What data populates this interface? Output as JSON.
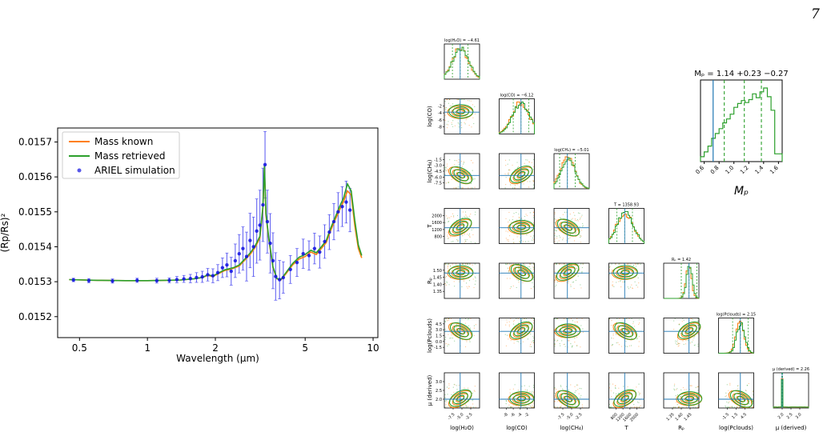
{
  "page_number": "7",
  "chart_data": [
    {
      "type": "line",
      "ylabel": "(Rp/Rs)²",
      "xlabel": "Wavelength (μm)",
      "x_scale": "log",
      "xlim": [
        0.4,
        10.5
      ],
      "ylim": [
        0.01514,
        0.01574
      ],
      "xticks": [
        {
          "value": 0.5,
          "label": "0.5"
        },
        {
          "value": 1,
          "label": "1"
        },
        {
          "value": 2,
          "label": "2"
        },
        {
          "value": 5,
          "label": "5"
        },
        {
          "value": 10,
          "label": "10"
        }
      ],
      "yticks": [
        {
          "value": 0.0152,
          "label": "0.0152"
        },
        {
          "value": 0.0153,
          "label": "0.0153"
        },
        {
          "value": 0.0154,
          "label": "0.0154"
        },
        {
          "value": 0.0155,
          "label": "0.0155"
        },
        {
          "value": 0.0156,
          "label": "0.0156"
        },
        {
          "value": 0.0157,
          "label": "0.0157"
        }
      ],
      "legend": {
        "placement": "top-left",
        "entries": [
          "Mass known",
          "Mass retrieved",
          "ARIEL simulation"
        ]
      },
      "series": [
        {
          "name": "Mass known",
          "color": "#ff7f0e",
          "x": [
            0.45,
            0.6,
            0.8,
            1.0,
            1.2,
            1.4,
            1.6,
            1.75,
            1.85,
            1.95,
            2.05,
            2.2,
            2.4,
            2.55,
            2.7,
            2.85,
            3.0,
            3.15,
            3.25,
            3.3,
            3.35,
            3.45,
            3.6,
            3.75,
            3.9,
            4.1,
            4.4,
            4.7,
            5.0,
            5.3,
            5.6,
            5.9,
            6.2,
            6.5,
            6.8,
            7.1,
            7.4,
            7.7,
            8.0,
            8.3,
            8.6,
            8.9
          ],
          "y": [
            0.015306,
            0.015304,
            0.015303,
            0.015303,
            0.015304,
            0.015305,
            0.015308,
            0.015312,
            0.015318,
            0.015315,
            0.015322,
            0.015332,
            0.015338,
            0.015345,
            0.015362,
            0.015378,
            0.015398,
            0.015425,
            0.01551,
            0.015625,
            0.01549,
            0.01542,
            0.01534,
            0.015308,
            0.015305,
            0.015322,
            0.015348,
            0.015365,
            0.015372,
            0.015385,
            0.015378,
            0.015395,
            0.015412,
            0.015448,
            0.015478,
            0.015505,
            0.01553,
            0.01556,
            0.015548,
            0.01546,
            0.015395,
            0.015368
          ]
        },
        {
          "name": "Mass retrieved",
          "color": "#2ca02c",
          "x": [
            0.45,
            0.6,
            0.8,
            1.0,
            1.2,
            1.4,
            1.6,
            1.75,
            1.85,
            1.95,
            2.05,
            2.2,
            2.4,
            2.55,
            2.7,
            2.85,
            3.0,
            3.15,
            3.25,
            3.3,
            3.35,
            3.45,
            3.6,
            3.75,
            3.9,
            4.1,
            4.4,
            4.7,
            5.0,
            5.3,
            5.6,
            5.9,
            6.2,
            6.5,
            6.8,
            7.1,
            7.4,
            7.7,
            8.0,
            8.3,
            8.6,
            8.9
          ],
          "y": [
            0.015306,
            0.015304,
            0.015303,
            0.015303,
            0.015304,
            0.015305,
            0.015308,
            0.015312,
            0.01532,
            0.015316,
            0.015324,
            0.015334,
            0.01534,
            0.015348,
            0.015365,
            0.015382,
            0.015402,
            0.01543,
            0.015515,
            0.015632,
            0.015495,
            0.015425,
            0.015342,
            0.015309,
            0.015306,
            0.015325,
            0.015352,
            0.01537,
            0.015378,
            0.01539,
            0.015383,
            0.0154,
            0.015418,
            0.015455,
            0.015485,
            0.015515,
            0.01554,
            0.01558,
            0.01556,
            0.015475,
            0.015405,
            0.015375
          ]
        },
        {
          "name": "ARIEL simulation",
          "color": "#1010e0",
          "kind": "errorbar",
          "x": [
            0.47,
            0.55,
            0.7,
            0.9,
            1.1,
            1.25,
            1.35,
            1.45,
            1.55,
            1.65,
            1.75,
            1.85,
            1.95,
            2.05,
            2.15,
            2.25,
            2.35,
            2.45,
            2.55,
            2.65,
            2.75,
            2.85,
            2.95,
            3.05,
            3.15,
            3.25,
            3.32,
            3.4,
            3.5,
            3.6,
            3.7,
            3.85,
            4.0,
            4.3,
            4.6,
            4.9,
            5.2,
            5.5,
            5.8,
            6.1,
            6.4,
            6.7,
            7.0,
            7.3,
            7.6,
            7.9
          ],
          "y": [
            0.015305,
            0.015303,
            0.015302,
            0.015304,
            0.015303,
            0.015304,
            0.015306,
            0.015308,
            0.015309,
            0.015312,
            0.015314,
            0.01532,
            0.015317,
            0.015326,
            0.01534,
            0.015348,
            0.01533,
            0.01536,
            0.01538,
            0.015395,
            0.015372,
            0.015418,
            0.0154,
            0.015445,
            0.015462,
            0.01552,
            0.015635,
            0.015472,
            0.01541,
            0.01536,
            0.015315,
            0.015306,
            0.015312,
            0.015335,
            0.015355,
            0.01538,
            0.015375,
            0.015395,
            0.015385,
            0.015415,
            0.015442,
            0.015472,
            0.0155,
            0.015515,
            0.015528,
            0.015505
          ],
          "yerr": [
            5e-06,
            6e-06,
            6e-06,
            6e-06,
            7e-06,
            7e-06,
            9e-06,
            1e-05,
            1.2e-05,
            1.4e-05,
            1.6e-05,
            1.8e-05,
            2e-05,
            2.3e-05,
            2.8e-05,
            3.4e-05,
            4e-05,
            4.8e-05,
            5.5e-05,
            6.2e-05,
            7e-05,
            7.8e-05,
            8.5e-05,
            9.2e-05,
            0.0001,
            0.000105,
            9.5e-05,
            9e-05,
            8.5e-05,
            8e-05,
            6.8e-05,
            5.5e-05,
            4.5e-05,
            4e-05,
            4e-05,
            4.2e-05,
            4.2e-05,
            4.4e-05,
            4.6e-05,
            4.8e-05,
            5e-05,
            5.2e-05,
            5.5e-05,
            5.7e-05,
            6e-05,
            6.2e-05
          ]
        }
      ]
    },
    {
      "type": "corner",
      "parameters": [
        "log(H₂O)",
        "log(CO)",
        "log(CH₄)",
        "T",
        "Rₚ",
        "log(P_clouds)",
        "μ (derived)"
      ],
      "axis_labels": [
        "log(H₂O)",
        "log(CO)",
        "log(CH₄)",
        "T",
        "Rₚ",
        "log(Pclouds)",
        "μ (derived)"
      ],
      "diagonal_titles": [
        "log(H₂O) = −4.61",
        "log(CO) = −6.12",
        "log(CH₄) = −5.01",
        "T = 1358.93",
        "Rₚ = 1.42",
        "log(Pclouds) = 2.15",
        "μ (derived) = 2.26"
      ],
      "x_tick_labels": [
        [
          "-7.5",
          "-5.0",
          "-2.5"
        ],
        [
          "-8",
          "-6",
          "-4",
          "-2"
        ],
        [
          "-7.5",
          "-5.0",
          "-2.5"
        ],
        [
          "800",
          "1200",
          "1600",
          "2000"
        ],
        [
          "1.35",
          "1.40",
          "1.45"
        ],
        [
          "-1.5",
          "1.5",
          "4.5"
        ],
        [
          "2.0",
          "2.5",
          "3.0"
        ]
      ],
      "y_tick_labels": [
        [],
        [
          "-2",
          "-4",
          "-6",
          "-8"
        ],
        [
          "-1.5",
          "-3.0",
          "-4.5",
          "-6.0",
          "-7.5"
        ],
        [
          "2000",
          "1600",
          "1200",
          "800"
        ],
        [
          "1.50",
          "1.45",
          "1.40",
          "1.35"
        ],
        [
          "4.5",
          "3.0",
          "1.5",
          "0.0",
          "-1.5"
        ],
        [
          "3.0",
          "2.5",
          "2.0"
        ]
      ],
      "colors": {
        "known": "#ff7f0e",
        "retrieved": "#2ca02c",
        "truth": "#1f77b4"
      }
    },
    {
      "type": "histogram",
      "title": "Mₚ = 1.14 +0.23 −0.27",
      "xlabel": "Mₚ",
      "xticks": [
        "0.6",
        "0.8",
        "1.0",
        "1.2",
        "1.4",
        "1.6"
      ],
      "xlim": [
        0.55,
        1.65
      ],
      "truth": 0.72,
      "quantiles": [
        0.87,
        1.14,
        1.37
      ],
      "bins": [
        0.55,
        0.6,
        0.65,
        0.7,
        0.75,
        0.8,
        0.85,
        0.9,
        0.95,
        1.0,
        1.05,
        1.1,
        1.15,
        1.2,
        1.25,
        1.3,
        1.35,
        1.4,
        1.45,
        1.5,
        1.55,
        1.6,
        1.65
      ],
      "counts": [
        5,
        10,
        16,
        24,
        29,
        34,
        40,
        44,
        49,
        56,
        60,
        63,
        61,
        64,
        70,
        66,
        72,
        76,
        67,
        53,
        8,
        8
      ],
      "color": "#2ca02c"
    }
  ]
}
